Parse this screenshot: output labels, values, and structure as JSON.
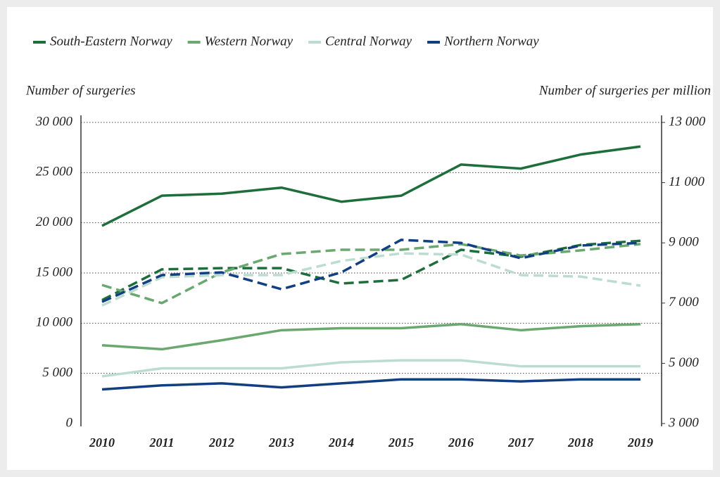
{
  "chart_data": {
    "type": "line",
    "y_label": "Number of surgeries",
    "y2_label": "Number of surgeries per million",
    "x": [
      "2010",
      "2011",
      "2012",
      "2013",
      "2014",
      "2015",
      "2016",
      "2017",
      "2018",
      "2019"
    ],
    "ylim": [
      0,
      30000
    ],
    "yticks": [
      0,
      {
        "value": 5000,
        "label": "5 000"
      },
      {
        "value": 10000,
        "label": "10 000"
      },
      {
        "value": 15000,
        "label": "15 000"
      },
      {
        "value": 20000,
        "label": "20 000"
      },
      {
        "value": 25000,
        "label": "25 000"
      },
      {
        "value": 30000,
        "label": "30 000"
      }
    ],
    "y2lim": [
      3000,
      13000
    ],
    "y2ticks": [
      {
        "value": 3000,
        "label": "3 000"
      },
      {
        "value": 5000,
        "label": "5 000"
      },
      {
        "value": 7000,
        "label": "7 000"
      },
      {
        "value": 9000,
        "label": "9 000"
      },
      {
        "value": 11000,
        "label": "11 000"
      },
      {
        "value": 13000,
        "label": "13 000"
      }
    ],
    "grid": true,
    "series": [
      {
        "name": "South-Eastern Norway",
        "color": "#1e6e3c",
        "values": [
          19700,
          22700,
          22900,
          23500,
          22100,
          22700,
          25800,
          25400,
          26800,
          27600
        ],
        "per_million": [
          7100,
          8120,
          8160,
          8160,
          7650,
          7770,
          8770,
          8540,
          8930,
          9070
        ]
      },
      {
        "name": "Western Norway",
        "color": "#6aa86f",
        "values": [
          7800,
          7400,
          8300,
          9300,
          9500,
          9500,
          9900,
          9300,
          9700,
          9900
        ],
        "per_million": [
          7600,
          7000,
          8020,
          8630,
          8770,
          8770,
          8960,
          8580,
          8750,
          8960
        ]
      },
      {
        "name": "Central Norway",
        "color": "#bcdcd2",
        "values": [
          4700,
          5500,
          5500,
          5500,
          6100,
          6300,
          6300,
          5700,
          5700,
          5700
        ],
        "per_million": [
          6920,
          7860,
          7930,
          7930,
          8400,
          8650,
          8610,
          7930,
          7880,
          7580
        ]
      },
      {
        "name": "Northern Norway",
        "color": "#123e82",
        "values": [
          3400,
          3800,
          4000,
          3600,
          4000,
          4400,
          4400,
          4200,
          4400,
          4400
        ],
        "per_million": [
          7040,
          7930,
          8020,
          7460,
          8020,
          9100,
          9000,
          8490,
          8910,
          9000
        ]
      }
    ]
  }
}
